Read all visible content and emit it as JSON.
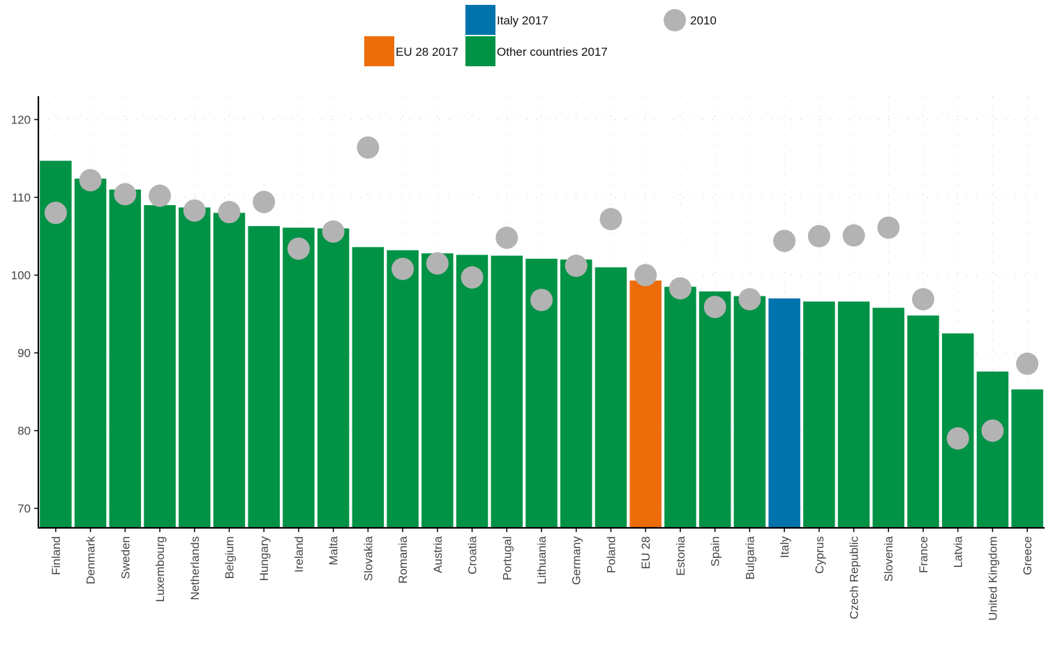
{
  "chart_data": {
    "type": "bar",
    "categories": [
      "Finland",
      "Denmark",
      "Sweden",
      "Luxembourg",
      "Netherlands",
      "Belgium",
      "Hungary",
      "Ireland",
      "Malta",
      "Slovakia",
      "Romania",
      "Austria",
      "Croatia",
      "Portugal",
      "Lithuania",
      "Germany",
      "Poland",
      "EU 28",
      "Estonia",
      "Spain",
      "Bulgaria",
      "Italy",
      "Cyprus",
      "Czech Republic",
      "Slovenia",
      "France",
      "Latvia",
      "United Kingdom",
      "Greece"
    ],
    "series": [
      {
        "name": "2017",
        "values": [
          114.7,
          112.4,
          111.0,
          109.0,
          108.7,
          108.0,
          106.3,
          106.1,
          106.0,
          103.6,
          103.2,
          102.8,
          102.6,
          102.5,
          102.1,
          102.0,
          101.0,
          99.3,
          98.5,
          97.9,
          97.3,
          97.0,
          96.6,
          96.6,
          95.8,
          94.8,
          92.5,
          87.6,
          85.3
        ],
        "groups": [
          "other",
          "other",
          "other",
          "other",
          "other",
          "other",
          "other",
          "other",
          "other",
          "other",
          "other",
          "other",
          "other",
          "other",
          "other",
          "other",
          "other",
          "eu",
          "other",
          "other",
          "other",
          "italy",
          "other",
          "other",
          "other",
          "other",
          "other",
          "other",
          "other"
        ]
      },
      {
        "name": "2010",
        "values": [
          108.0,
          112.2,
          110.4,
          110.2,
          108.3,
          108.1,
          109.4,
          103.4,
          105.6,
          116.4,
          100.8,
          101.5,
          99.7,
          104.8,
          96.8,
          101.2,
          107.2,
          100.0,
          98.3,
          95.9,
          96.9,
          104.4,
          105.0,
          105.1,
          106.1,
          96.9,
          79.0,
          80.0,
          88.6
        ]
      }
    ],
    "yticks": [
      70,
      80,
      90,
      100,
      110,
      120
    ],
    "ylim": [
      67.5,
      123
    ],
    "grid": "dotted",
    "legend": {
      "placement": "top-center",
      "entries": [
        {
          "key": "italy",
          "label": "Italy 2017",
          "kind": "bar"
        },
        {
          "key": "dot",
          "label": "2010",
          "kind": "dot"
        },
        {
          "key": "eu",
          "label": "EU 28 2017",
          "kind": "bar"
        },
        {
          "key": "other",
          "label": "Other countries 2017",
          "kind": "bar"
        }
      ]
    },
    "colors": {
      "other": "#009245",
      "eu": "#ed6c0a",
      "italy": "#0072ac",
      "dot": "#b3b3b3",
      "axis": "#000000",
      "grid": "#c8c8c8"
    }
  }
}
